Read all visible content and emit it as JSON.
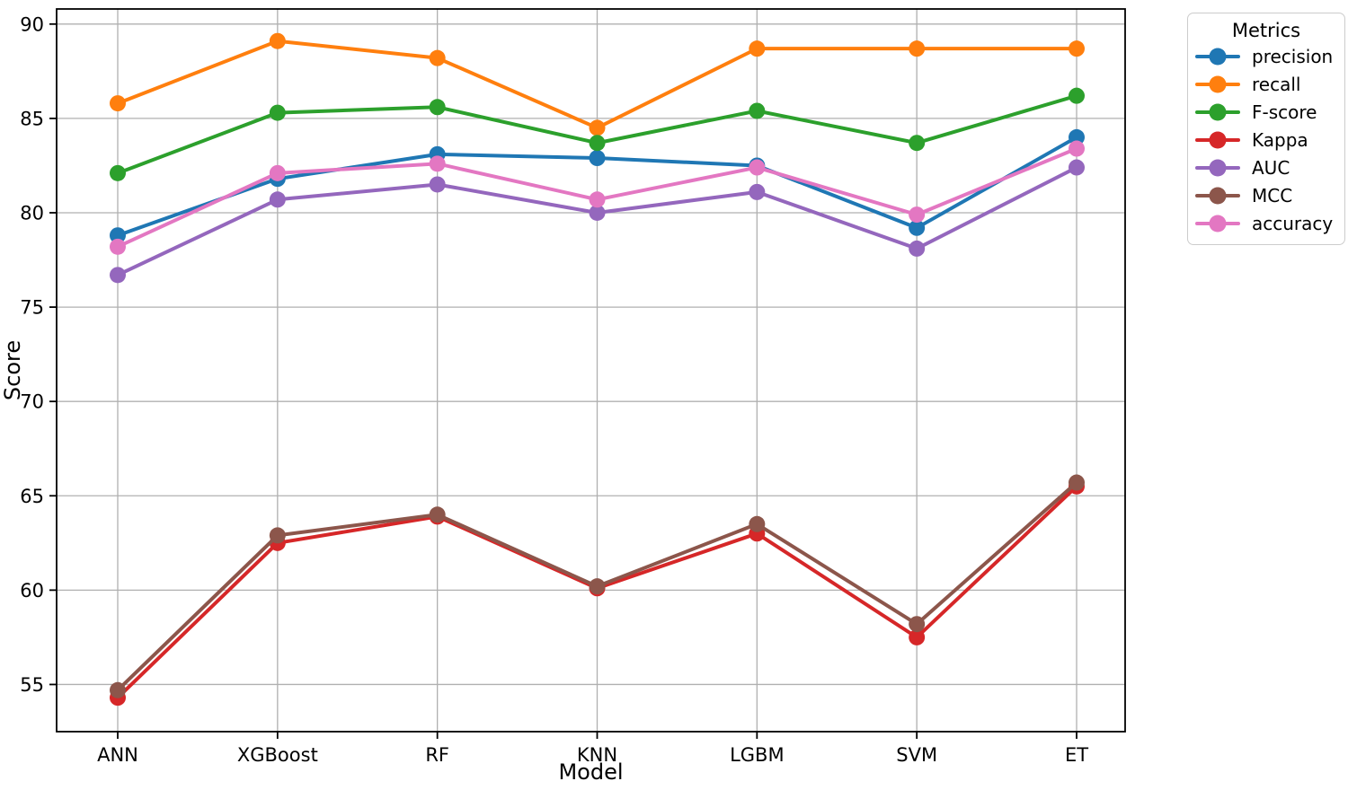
{
  "figure": {
    "background": "#ffffff",
    "text_color": "#000000",
    "grid_color": "#b0b0b0",
    "spine_color": "#000000"
  },
  "chart_data": {
    "type": "line",
    "title": "",
    "xlabel": "Model",
    "ylabel": "Score",
    "categories": [
      "ANN",
      "XGBoost",
      "RF",
      "KNN",
      "LGBM",
      "SVM",
      "ET"
    ],
    "yticks": [
      55,
      60,
      65,
      70,
      75,
      80,
      85,
      90
    ],
    "ylim": [
      52.5,
      90.8
    ],
    "grid": true,
    "legend": {
      "title": "Metrics",
      "position": "outside-upper-right"
    },
    "series": [
      {
        "name": "precision",
        "color": "#1f77b4",
        "values": [
          78.8,
          81.8,
          83.1,
          82.9,
          82.5,
          79.2,
          84.0
        ]
      },
      {
        "name": "recall",
        "color": "#ff7f0e",
        "values": [
          85.8,
          89.1,
          88.2,
          84.5,
          88.7,
          88.7,
          88.7
        ]
      },
      {
        "name": "F-score",
        "color": "#2ca02c",
        "values": [
          82.1,
          85.3,
          85.6,
          83.7,
          85.4,
          83.7,
          86.2
        ]
      },
      {
        "name": "Kappa",
        "color": "#d62728",
        "values": [
          54.3,
          62.5,
          63.9,
          60.1,
          63.0,
          57.5,
          65.5
        ]
      },
      {
        "name": "AUC",
        "color": "#9467bd",
        "values": [
          76.7,
          80.7,
          81.5,
          80.0,
          81.1,
          78.1,
          82.4
        ]
      },
      {
        "name": "MCC",
        "color": "#8c564b",
        "values": [
          54.7,
          62.9,
          64.0,
          60.2,
          63.5,
          58.2,
          65.7
        ]
      },
      {
        "name": "accuracy",
        "color": "#e377c2",
        "values": [
          78.2,
          82.1,
          82.6,
          80.7,
          82.4,
          79.9,
          83.4
        ]
      }
    ]
  }
}
